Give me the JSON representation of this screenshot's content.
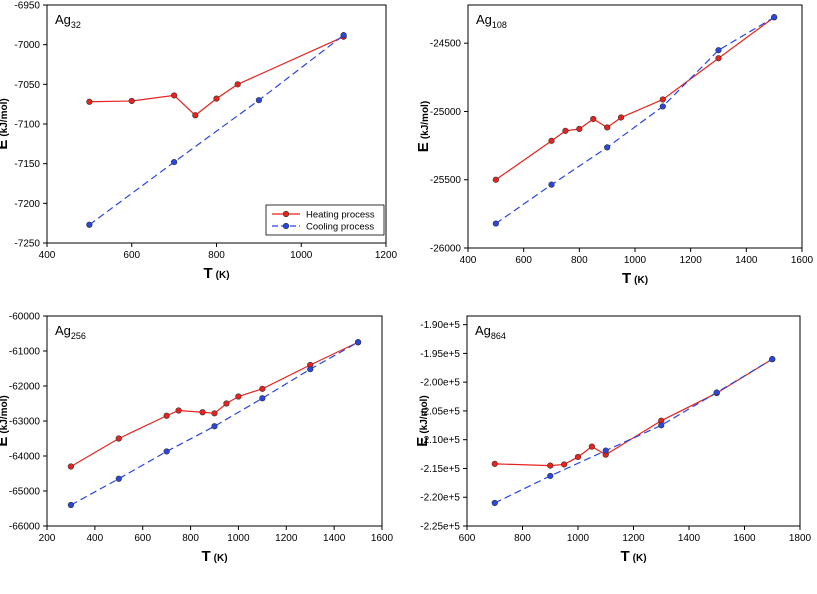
{
  "chart_data": [
    {
      "type": "line",
      "title": "Ag",
      "title_subscript": "32",
      "xlabel": "T",
      "xlabel_unit": "(K)",
      "ylabel": "E",
      "ylabel_unit": "(kJ/mol)",
      "xlim": [
        400,
        1200
      ],
      "xticks": [
        400,
        600,
        800,
        1000,
        1200
      ],
      "ylim": [
        -7250,
        -6950
      ],
      "yticks": [
        -7250,
        -7200,
        -7150,
        -7100,
        -7050,
        -7000,
        -6950
      ],
      "legend": "lower right",
      "series": [
        {
          "name": "Heating process",
          "color": "#e8231f",
          "linestyle": "solid",
          "x": [
            500,
            600,
            700,
            750,
            800,
            850,
            1100
          ],
          "values": [
            -7072,
            -7071,
            -7064,
            -7089,
            -7068,
            -7050,
            -6990
          ]
        },
        {
          "name": "Cooling process",
          "color": "#2a45e0",
          "linestyle": "dashed",
          "x": [
            500,
            700,
            900,
            1100
          ],
          "values": [
            -7227,
            -7148,
            -7070,
            -6988
          ]
        }
      ]
    },
    {
      "type": "line",
      "title": "Ag",
      "title_subscript": "108",
      "xlabel": "T",
      "xlabel_unit": "(K)",
      "ylabel": "E",
      "ylabel_unit": "(kJ/mol)",
      "xlim": [
        400,
        1600
      ],
      "xticks": [
        400,
        600,
        800,
        1000,
        1200,
        1400,
        1600
      ],
      "ylim": [
        -26000,
        -24220
      ],
      "yticks": [
        -26000,
        -25500,
        -25000,
        -24500
      ],
      "series": [
        {
          "name": "Heating process",
          "color": "#e8231f",
          "linestyle": "solid",
          "x": [
            500,
            700,
            750,
            800,
            850,
            900,
            950,
            1100,
            1300,
            1500
          ],
          "values": [
            -25500,
            -25215,
            -25142,
            -25128,
            -25055,
            -25117,
            -25044,
            -24912,
            -24610,
            -24310
          ]
        },
        {
          "name": "Cooling process",
          "color": "#2a45e0",
          "linestyle": "dashed",
          "x": [
            500,
            700,
            900,
            1100,
            1300,
            1500
          ],
          "values": [
            -25821,
            -25536,
            -25263,
            -24963,
            -24551,
            -24310
          ]
        }
      ]
    },
    {
      "type": "line",
      "title": "Ag",
      "title_subscript": "256",
      "xlabel": "T",
      "xlabel_unit": "(K)",
      "ylabel": "E",
      "ylabel_unit": "(kJ/mol)",
      "xlim": [
        200,
        1600
      ],
      "xticks": [
        200,
        400,
        600,
        800,
        1000,
        1200,
        1400,
        1600
      ],
      "ylim": [
        -66000,
        -60000
      ],
      "yticks": [
        -66000,
        -65000,
        -64000,
        -63000,
        -62000,
        -61000,
        -60000
      ],
      "series": [
        {
          "name": "Heating process",
          "color": "#e8231f",
          "linestyle": "solid",
          "x": [
            300,
            500,
            700,
            750,
            850,
            900,
            950,
            1000,
            1100,
            1300,
            1500
          ],
          "values": [
            -64300,
            -63500,
            -62850,
            -62700,
            -62750,
            -62780,
            -62500,
            -62300,
            -62080,
            -61400,
            -60750
          ]
        },
        {
          "name": "Cooling process",
          "color": "#2a45e0",
          "linestyle": "dashed",
          "x": [
            300,
            500,
            700,
            900,
            1100,
            1300,
            1500
          ],
          "values": [
            -65400,
            -64650,
            -63870,
            -63150,
            -62350,
            -61520,
            -60750
          ]
        }
      ]
    },
    {
      "type": "line",
      "title": "Ag",
      "title_subscript": "864",
      "xlabel": "T",
      "xlabel_unit": "(K)",
      "ylabel": "E",
      "ylabel_unit": "(kJ/mol)",
      "xlim": [
        600,
        1800
      ],
      "xticks": [
        600,
        800,
        1000,
        1200,
        1400,
        1600,
        1800
      ],
      "ylim": [
        -225000,
        -188500
      ],
      "yticks": [
        {
          "value": -225000,
          "label": "-2.25e+5"
        },
        {
          "value": -220000,
          "label": "-2.20e+5"
        },
        {
          "value": -215000,
          "label": "-2.15e+5"
        },
        {
          "value": -210000,
          "label": "-2.10e+5"
        },
        {
          "value": -205000,
          "label": "-2.05e+5"
        },
        {
          "value": -200000,
          "label": "-2.00e+5"
        },
        {
          "value": -195000,
          "label": "-1.95e+5"
        },
        {
          "value": -190000,
          "label": "-1.90e+5"
        }
      ],
      "series": [
        {
          "name": "Heating process",
          "color": "#e8231f",
          "linestyle": "solid",
          "x": [
            700,
            900,
            950,
            1000,
            1050,
            1100,
            1300,
            1500,
            1700
          ],
          "values": [
            -214200,
            -214500,
            -214300,
            -213000,
            -211200,
            -212600,
            -206700,
            -201900,
            -196000
          ]
        },
        {
          "name": "Cooling process",
          "color": "#2a45e0",
          "linestyle": "dashed",
          "x": [
            700,
            900,
            1100,
            1300,
            1500,
            1700
          ],
          "values": [
            -221000,
            -216300,
            -211900,
            -207500,
            -201800,
            -196000
          ]
        }
      ]
    }
  ]
}
